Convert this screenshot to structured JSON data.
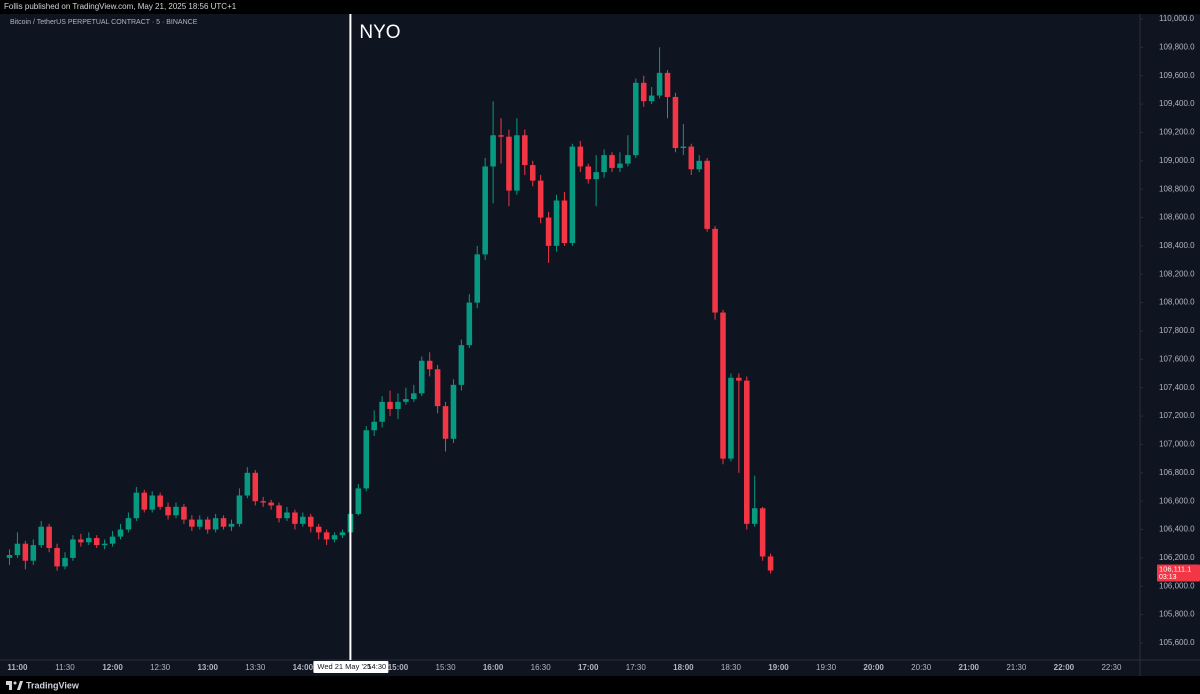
{
  "header": {
    "publisher": "Follis published on TradingView.com, May 21, 2025 18:56 UTC+1"
  },
  "footer": {
    "brand": "TradingView"
  },
  "chart_data": {
    "type": "candlestick",
    "title": "Bitcoin / TetherUS PERPETUAL CONTRACT · 5 · BINANCE",
    "annotation": "NYO",
    "crosshair": {
      "date": "Wed 21 May '25",
      "time": "14:30"
    },
    "up_color": "#089981",
    "down_color": "#f23645",
    "grid": false,
    "x": [
      "10:55",
      "11:00",
      "11:05",
      "11:10",
      "11:15",
      "11:20",
      "11:25",
      "11:30",
      "11:35",
      "11:40",
      "11:45",
      "11:50",
      "11:55",
      "12:00",
      "12:05",
      "12:10",
      "12:15",
      "12:20",
      "12:25",
      "12:30",
      "12:35",
      "12:40",
      "12:45",
      "12:50",
      "12:55",
      "13:00",
      "13:05",
      "13:10",
      "13:15",
      "13:20",
      "13:25",
      "13:30",
      "13:35",
      "13:40",
      "13:45",
      "13:50",
      "13:55",
      "14:00",
      "14:05",
      "14:10",
      "14:15",
      "14:20",
      "14:25",
      "14:30",
      "14:35",
      "14:40",
      "14:45",
      "14:50",
      "14:55",
      "15:00",
      "15:05",
      "15:10",
      "15:15",
      "15:20",
      "15:25",
      "15:30",
      "15:35",
      "15:40",
      "15:45",
      "15:50",
      "15:55",
      "16:00",
      "16:05",
      "16:10",
      "16:15",
      "16:20",
      "16:25",
      "16:30",
      "16:35",
      "16:40",
      "16:45",
      "16:50",
      "16:55",
      "17:00",
      "17:05",
      "17:10",
      "17:15",
      "17:20",
      "17:25",
      "17:30",
      "17:35",
      "17:40",
      "17:45",
      "17:50",
      "17:55",
      "18:00",
      "18:05",
      "18:10",
      "18:15",
      "18:20",
      "18:25",
      "18:30",
      "18:35",
      "18:40",
      "18:45",
      "18:50",
      "18:55"
    ],
    "open": [
      106200,
      106220,
      106300,
      106180,
      106290,
      106420,
      106270,
      106140,
      106200,
      106330,
      106310,
      106340,
      106290,
      106300,
      106350,
      106400,
      106480,
      106660,
      106540,
      106640,
      106560,
      106500,
      106560,
      106470,
      106420,
      106470,
      106400,
      106480,
      106420,
      106440,
      106640,
      106800,
      106600,
      106590,
      106570,
      106480,
      106520,
      106440,
      106490,
      106420,
      106380,
      106330,
      106360,
      106380,
      106510,
      106690,
      107100,
      107160,
      107300,
      107250,
      107300,
      107320,
      107360,
      107590,
      107530,
      107270,
      107040,
      107420,
      107700,
      108000,
      108340,
      108960,
      109180,
      109170,
      108790,
      109180,
      108970,
      108860,
      108600,
      108400,
      108720,
      108420,
      109100,
      108960,
      108870,
      108920,
      109040,
      108950,
      108980,
      109040,
      109550,
      109420,
      109460,
      109620,
      109450,
      109090,
      109100,
      108940,
      109000,
      108520,
      107930,
      106900,
      107470,
      107450,
      106440,
      106550,
      106210
    ],
    "high": [
      106260,
      106380,
      106320,
      106330,
      106460,
      106440,
      106300,
      106240,
      106360,
      106370,
      106380,
      106360,
      106330,
      106390,
      106440,
      106520,
      106700,
      106680,
      106670,
      106660,
      106590,
      106590,
      106580,
      106500,
      106500,
      106490,
      106510,
      106500,
      106470,
      106690,
      106840,
      106820,
      106630,
      106610,
      106590,
      106560,
      106540,
      106520,
      106510,
      106440,
      106400,
      106380,
      106400,
      106540,
      106720,
      107130,
      107240,
      107340,
      107380,
      107360,
      107400,
      107420,
      107620,
      107650,
      107560,
      107300,
      107460,
      107740,
      108060,
      108400,
      109020,
      109420,
      109300,
      109220,
      109300,
      109220,
      109000,
      108900,
      108640,
      108760,
      108780,
      109120,
      109140,
      108980,
      109040,
      109080,
      109060,
      109060,
      109180,
      109580,
      109600,
      109520,
      109800,
      109640,
      109480,
      109260,
      109120,
      109040,
      109020,
      108540,
      107950,
      107500,
      107500,
      107480,
      106780,
      106560,
      106230
    ],
    "low": [
      106150,
      106200,
      106120,
      106150,
      106270,
      106240,
      106110,
      106120,
      106180,
      106280,
      106290,
      106270,
      106260,
      106280,
      106330,
      106380,
      106460,
      106520,
      106520,
      106540,
      106470,
      106480,
      106440,
      106390,
      106400,
      106370,
      106380,
      106400,
      106390,
      106420,
      106620,
      106570,
      106560,
      106540,
      106450,
      106460,
      106400,
      106420,
      106380,
      106330,
      106290,
      106310,
      106340,
      106360,
      106500,
      106670,
      107060,
      107120,
      107200,
      107180,
      107280,
      107300,
      107340,
      107480,
      107220,
      106950,
      107010,
      107380,
      107680,
      107960,
      108300,
      108700,
      108980,
      108680,
      108760,
      108900,
      108820,
      108560,
      108280,
      108360,
      108400,
      108400,
      108920,
      108840,
      108680,
      108880,
      108920,
      108920,
      108960,
      109020,
      109380,
      109400,
      109440,
      109300,
      109060,
      109040,
      108900,
      108920,
      108500,
      107880,
      106860,
      106880,
      106800,
      106400,
      106420,
      106180,
      106090
    ],
    "close": [
      106220,
      106300,
      106180,
      106290,
      106420,
      106270,
      106140,
      106200,
      106330,
      106310,
      106340,
      106290,
      106300,
      106350,
      106400,
      106480,
      106660,
      106540,
      106640,
      106560,
      106500,
      106560,
      106470,
      106420,
      106470,
      106400,
      106480,
      106420,
      106440,
      106640,
      106800,
      106600,
      106590,
      106570,
      106480,
      106520,
      106440,
      106490,
      106420,
      106380,
      106330,
      106360,
      106380,
      106510,
      106690,
      107100,
      107160,
      107300,
      107250,
      107300,
      107320,
      107360,
      107590,
      107530,
      107270,
      107040,
      107420,
      107700,
      108000,
      108340,
      108960,
      109180,
      109170,
      108790,
      109180,
      108970,
      108860,
      108600,
      108400,
      108720,
      108420,
      109100,
      108960,
      108870,
      108920,
      109040,
      108950,
      108980,
      109040,
      109550,
      109420,
      109460,
      109620,
      109450,
      109090,
      109100,
      108940,
      109000,
      108520,
      107930,
      106900,
      107470,
      107450,
      106440,
      106550,
      106210,
      106111.1
    ],
    "last_price": {
      "value": 106111.1,
      "label": "106,111.1",
      "countdown": "03:13"
    },
    "xlim": [
      "10:49",
      "22:48"
    ],
    "xticks": [
      "11:00",
      "11:30",
      "12:00",
      "12:30",
      "13:00",
      "13:30",
      "14:00",
      "14:30",
      "15:00",
      "15:30",
      "16:00",
      "16:30",
      "17:00",
      "17:30",
      "18:00",
      "18:30",
      "19:00",
      "19:30",
      "20:00",
      "20:30",
      "21:00",
      "21:30",
      "22:00",
      "22:30"
    ],
    "ylim": [
      105480,
      110035
    ],
    "yticks": [
      {
        "value": 105600,
        "label": "105,600.0"
      },
      {
        "value": 105800,
        "label": "105,800.0"
      },
      {
        "value": 106000,
        "label": "106,000.0"
      },
      {
        "value": 106200,
        "label": "106,200.0"
      },
      {
        "value": 106400,
        "label": "106,400.0"
      },
      {
        "value": 106600,
        "label": "106,600.0"
      },
      {
        "value": 106800,
        "label": "106,800.0"
      },
      {
        "value": 107000,
        "label": "107,000.0"
      },
      {
        "value": 107200,
        "label": "107,200.0"
      },
      {
        "value": 107400,
        "label": "107,400.0"
      },
      {
        "value": 107600,
        "label": "107,600.0"
      },
      {
        "value": 107800,
        "label": "107,800.0"
      },
      {
        "value": 108000,
        "label": "108,000.0"
      },
      {
        "value": 108200,
        "label": "108,200.0"
      },
      {
        "value": 108400,
        "label": "108,400.0"
      },
      {
        "value": 108600,
        "label": "108,600.0"
      },
      {
        "value": 108800,
        "label": "108,800.0"
      },
      {
        "value": 109000,
        "label": "109,000.0"
      },
      {
        "value": 109200,
        "label": "109,200.0"
      },
      {
        "value": 109400,
        "label": "109,400.0"
      },
      {
        "value": 109600,
        "label": "109,600.0"
      },
      {
        "value": 109800,
        "label": "109,800.0"
      },
      {
        "value": 110000,
        "label": "110,000.0"
      }
    ]
  }
}
